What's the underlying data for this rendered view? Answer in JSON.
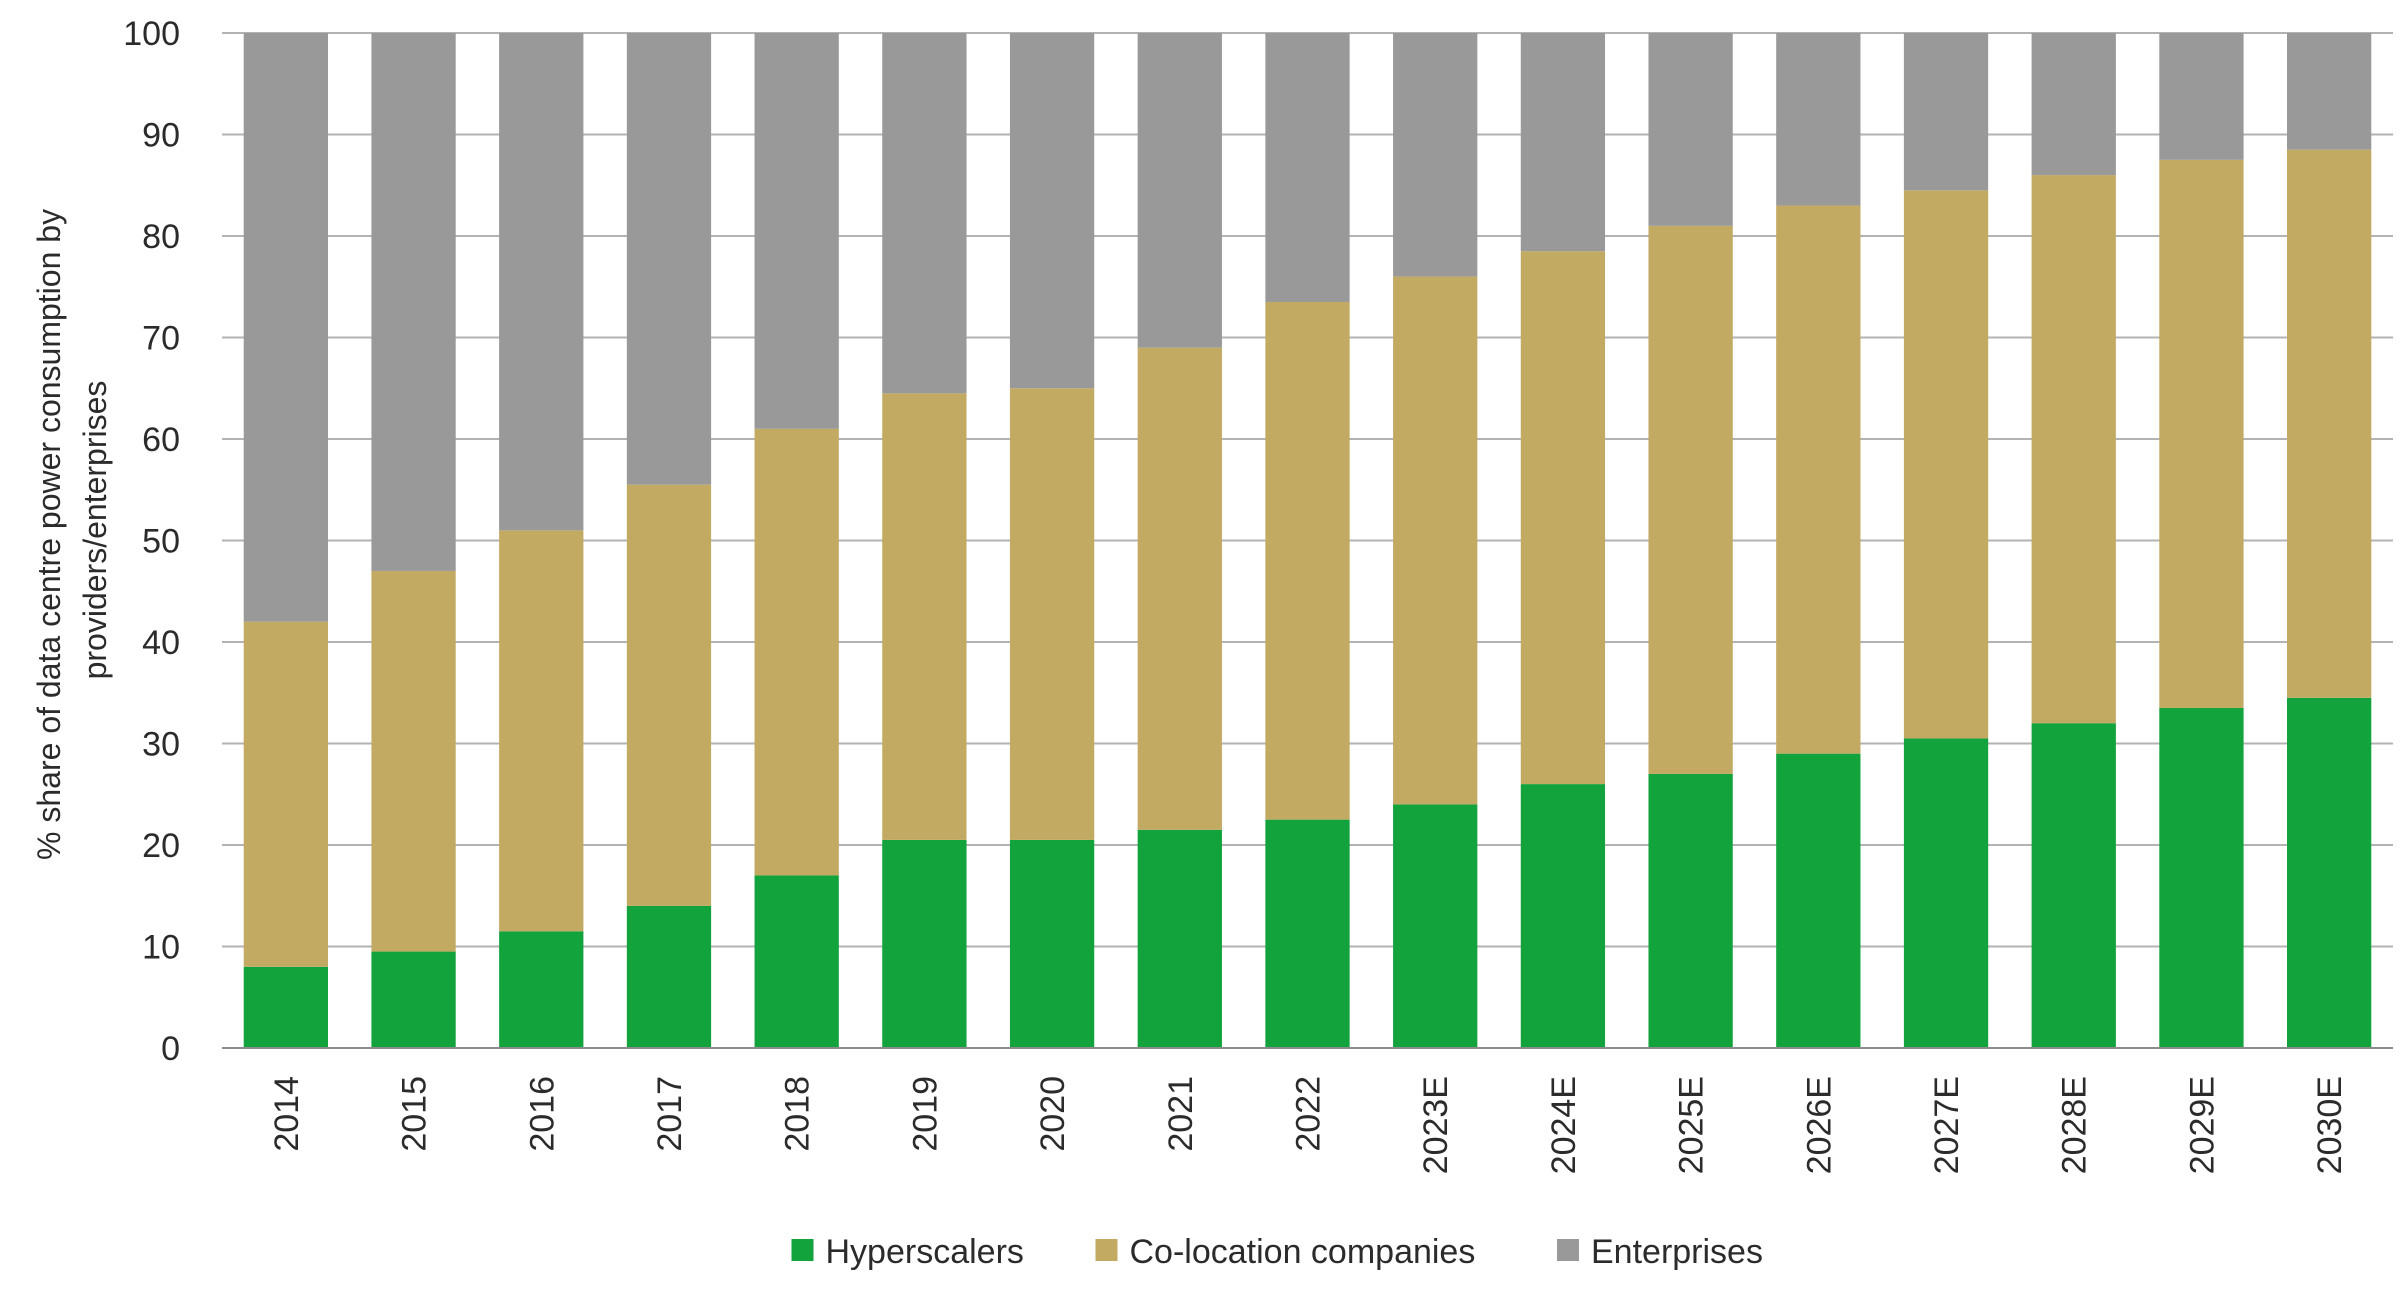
{
  "chart_data": {
    "type": "bar",
    "stacked": true,
    "title": "",
    "xlabel": "",
    "ylabel": "% share of data centre power consumption by providers/enterprises",
    "ylabel_lines": [
      "% share of data centre power consumption by",
      "providers/enterprises"
    ],
    "ylim": [
      0,
      100
    ],
    "yticks": [
      0,
      10,
      20,
      30,
      40,
      50,
      60,
      70,
      80,
      90,
      100
    ],
    "grid": true,
    "legend_position": "bottom",
    "categories": [
      "2014",
      "2015",
      "2016",
      "2017",
      "2018",
      "2019",
      "2020",
      "2021",
      "2022",
      "2023E",
      "2024E",
      "2025E",
      "2026E",
      "2027E",
      "2028E",
      "2029E",
      "2030E"
    ],
    "series": [
      {
        "name": "Hyperscalers",
        "color": "#12a33c",
        "values": [
          8,
          9.5,
          11.5,
          14,
          17,
          20.5,
          20.5,
          21.5,
          22.5,
          24,
          26,
          27,
          29,
          30.5,
          32,
          33.5,
          34.5
        ]
      },
      {
        "name": "Co-location companies",
        "color": "#c2aa62",
        "values": [
          34,
          37.5,
          39.5,
          41.5,
          44,
          44,
          44.5,
          47.5,
          51,
          52,
          52.5,
          54,
          54,
          54,
          54,
          54,
          54
        ]
      },
      {
        "name": "Enterprises",
        "color": "#999999",
        "values": [
          58,
          53,
          49,
          44.5,
          39,
          35.5,
          35,
          31,
          26.5,
          24,
          21.5,
          19,
          17,
          15.5,
          14,
          12.5,
          11.5
        ]
      }
    ]
  }
}
